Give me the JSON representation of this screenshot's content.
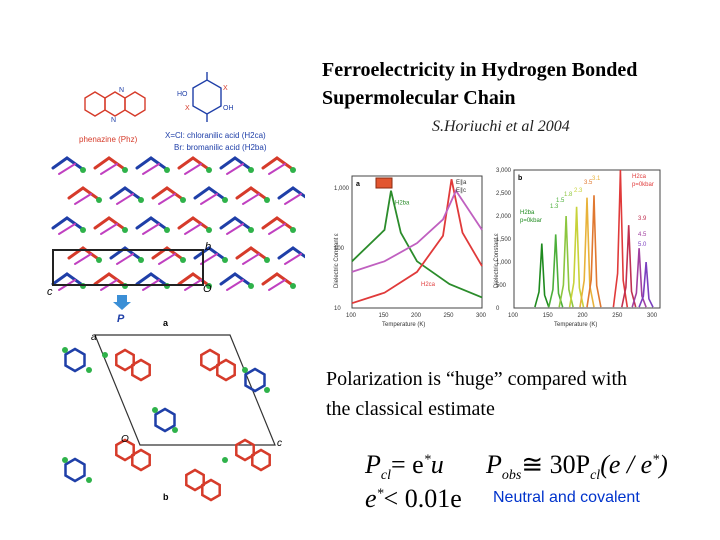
{
  "slide": {
    "title_line1": "Ferroelectricity in Hydrogen Bonded",
    "title_line2": "Supermolecular Chain",
    "citation": "S.Horiuchi et al  2004",
    "paragraph_line1": "Polarization is “huge” compared with",
    "paragraph_line2": "the classical estimate",
    "note": "Neutral   and covalent"
  },
  "molecules": {
    "phenazine": "phenazine  (Phz)",
    "acid_cl": "X=Cl: chloranilic acid (H2ca)",
    "acid_br": "Br: bromanilic acid (H2ba)"
  },
  "structure": {
    "label_a": "a",
    "label_b": "b",
    "label_c": "c",
    "label_o": "O",
    "label_p": "P"
  },
  "equations": {
    "eq1_lhs": "P",
    "eq1_lhs_sub": "cl",
    "eq1_rhs": "= e",
    "eq1_star": "*",
    "eq1_u": "u",
    "eq2_lhs": "P",
    "eq2_lhs_sub": "obs",
    "eq2_rhs": "≅ 30P",
    "eq2_sub": "cl",
    "eq2_tail": "(e / e",
    "eq2_star": "*",
    "eq2_close": ")",
    "eq3_lhs": "e",
    "eq3_star": "*",
    "eq3_rhs": "< 0.01e"
  },
  "colors": {
    "accent_blue": "#0033cc",
    "chain_red": "#d63b2a",
    "chain_blue": "#1f3fa8",
    "hbond_green": "#2fb24a",
    "magenta": "#c040c0"
  },
  "chart_data": [
    {
      "type": "line",
      "panel": "a",
      "xlabel": "Temperature (K)",
      "ylabel": "Dielectric Constant ε",
      "x_ticks": [
        "100",
        "150",
        "200",
        "250",
        "300"
      ],
      "y_ticks": [
        "1,000",
        "100",
        "10"
      ],
      "legend": [
        "E∥a",
        "E∥c"
      ],
      "series": [
        {
          "name": "H2ba",
          "x": [
            100,
            150,
            160,
            175,
            200,
            250,
            300
          ],
          "y": [
            60,
            200,
            900,
            180,
            60,
            25,
            15
          ],
          "color": "#2b8c2b"
        },
        {
          "name": "H2ca",
          "x": [
            100,
            150,
            200,
            240,
            253,
            270,
            300
          ],
          "y": [
            12,
            18,
            40,
            160,
            1400,
            180,
            50
          ],
          "color": "#e03a3a"
        },
        {
          "name": "",
          "x": [
            100,
            150,
            200,
            240,
            260,
            300
          ],
          "y": [
            40,
            60,
            120,
            300,
            900,
            200
          ],
          "color": "#c060c0"
        }
      ]
    },
    {
      "type": "line",
      "panel": "b",
      "xlabel": "Temperature (K)",
      "ylabel": "Dielectric Constant ε",
      "x_ticks": [
        "100",
        "150",
        "200",
        "250",
        "300"
      ],
      "y_ticks": [
        "0",
        "500",
        "1,000",
        "1,500",
        "2,000",
        "2,500",
        "3,000"
      ],
      "annotations": [
        "H2ca",
        "p=0kbar",
        "H2ba",
        "p=0kbar",
        "3.9",
        "4.5",
        "5.0",
        "3.5",
        "3.1",
        "2.3",
        "1.5",
        "1.8",
        "1.3"
      ],
      "series": [
        {
          "name": "H2ba 0kbar",
          "peak_x": 140,
          "peak_y": 1400,
          "color": "#1e8a1e"
        },
        {
          "name": "1.3",
          "peak_x": 160,
          "peak_y": 1600,
          "color": "#4caf3a"
        },
        {
          "name": "1.8",
          "peak_x": 175,
          "peak_y": 2000,
          "color": "#8cc63f"
        },
        {
          "name": "2.3",
          "peak_x": 190,
          "peak_y": 2200,
          "color": "#c8d23a"
        },
        {
          "name": "3.1",
          "peak_x": 205,
          "peak_y": 2400,
          "color": "#e8b23a"
        },
        {
          "name": "3.5",
          "peak_x": 215,
          "peak_y": 2450,
          "color": "#e07830"
        },
        {
          "name": "H2ca 0kbar",
          "peak_x": 253,
          "peak_y": 3000,
          "color": "#e03a3a"
        },
        {
          "name": "3.9",
          "peak_x": 265,
          "peak_y": 1800,
          "color": "#c03050"
        },
        {
          "name": "4.5",
          "peak_x": 280,
          "peak_y": 1300,
          "color": "#a040a0"
        },
        {
          "name": "5.0",
          "peak_x": 290,
          "peak_y": 1000,
          "color": "#7a3fbf"
        }
      ]
    }
  ]
}
